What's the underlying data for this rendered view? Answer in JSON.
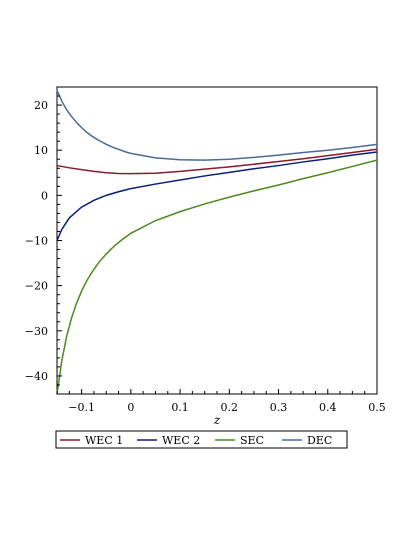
{
  "chart_data": {
    "type": "line",
    "title": "",
    "xlabel": "z",
    "ylabel": "",
    "xlim": [
      -0.15,
      0.5
    ],
    "ylim": [
      -44,
      24
    ],
    "xticks": [
      -0.1,
      0,
      0.1,
      0.2,
      0.3,
      0.4,
      0.5
    ],
    "xtick_labels": [
      "−0.1",
      "0",
      "0.1",
      "0.2",
      "0.3",
      "0.4",
      "0.5"
    ],
    "yticks": [
      -40,
      -30,
      -20,
      -10,
      0,
      10,
      20
    ],
    "ytick_labels": [
      "−40",
      "−30",
      "−20",
      "−10",
      "0",
      "10",
      "20"
    ],
    "grid": false,
    "legend": "bottom",
    "series": [
      {
        "name": "WEC 1",
        "color": "#8b1a2b",
        "x": [
          -0.15,
          -0.125,
          -0.1,
          -0.075,
          -0.05,
          -0.025,
          0,
          0.05,
          0.1,
          0.15,
          0.2,
          0.25,
          0.3,
          0.35,
          0.4,
          0.45,
          0.5
        ],
        "y": [
          6.6,
          6.1,
          5.7,
          5.3,
          5.0,
          4.85,
          4.8,
          4.9,
          5.3,
          5.8,
          6.3,
          6.9,
          7.5,
          8.1,
          8.8,
          9.5,
          10.2
        ]
      },
      {
        "name": "WEC 2",
        "color": "#0a1f7a",
        "x": [
          -0.15,
          -0.14,
          -0.125,
          -0.1,
          -0.075,
          -0.05,
          -0.025,
          0,
          0.05,
          0.1,
          0.15,
          0.2,
          0.25,
          0.3,
          0.35,
          0.4,
          0.45,
          0.5
        ],
        "y": [
          -10.0,
          -7.5,
          -5.0,
          -2.6,
          -1.1,
          0.0,
          0.8,
          1.5,
          2.5,
          3.4,
          4.3,
          5.1,
          5.9,
          6.6,
          7.4,
          8.1,
          8.9,
          9.6
        ]
      },
      {
        "name": "SEC",
        "color": "#4c8a1e",
        "x": [
          -0.15,
          -0.14,
          -0.13,
          -0.12,
          -0.11,
          -0.1,
          -0.09,
          -0.08,
          -0.07,
          -0.06,
          -0.05,
          -0.04,
          -0.03,
          -0.02,
          -0.01,
          0,
          0.05,
          0.1,
          0.15,
          0.2,
          0.25,
          0.3,
          0.35,
          0.4,
          0.45,
          0.5
        ],
        "y": [
          -44,
          -36.5,
          -31.0,
          -27.0,
          -23.8,
          -21.2,
          -19.0,
          -17.2,
          -15.6,
          -14.2,
          -13.0,
          -11.9,
          -10.9,
          -10.0,
          -9.2,
          -8.4,
          -5.6,
          -3.6,
          -1.9,
          -0.4,
          1.0,
          2.3,
          3.7,
          5.0,
          6.4,
          7.8
        ]
      },
      {
        "name": "DEC",
        "color": "#4a6a9a",
        "x": [
          -0.15,
          -0.14,
          -0.13,
          -0.12,
          -0.11,
          -0.1,
          -0.09,
          -0.08,
          -0.07,
          -0.06,
          -0.05,
          -0.04,
          -0.03,
          -0.02,
          -0.01,
          0,
          0.05,
          0.1,
          0.15,
          0.2,
          0.25,
          0.3,
          0.35,
          0.4,
          0.45,
          0.5
        ],
        "y": [
          23.3,
          20.8,
          18.9,
          17.4,
          16.1,
          15.0,
          14.0,
          13.2,
          12.5,
          11.9,
          11.3,
          10.8,
          10.4,
          10.0,
          9.6,
          9.3,
          8.3,
          7.9,
          7.8,
          8.0,
          8.4,
          8.9,
          9.5,
          10.0,
          10.6,
          11.3
        ]
      }
    ]
  }
}
